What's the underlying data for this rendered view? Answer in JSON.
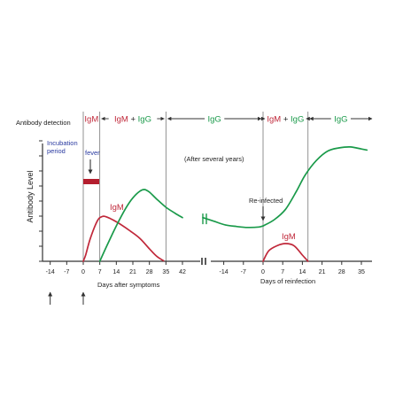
{
  "chart_data": {
    "type": "line",
    "antibody_detection_label": "Antibody detection",
    "ylabel": "Antibody  Level",
    "x_ticks_primary": [
      "-14",
      "-7",
      "0",
      "7",
      "14",
      "21",
      "28",
      "35",
      "42"
    ],
    "x_ticks_reinfection": [
      "-14",
      "-7",
      "0",
      "7",
      "14",
      "21",
      "28",
      "35"
    ],
    "xlabel_primary": "Days after symptoms",
    "xlabel_reinfection": "Days of reinfection",
    "detection_phases": [
      {
        "parts": [
          {
            "text": "IgM",
            "color": "#c0283a"
          }
        ]
      },
      {
        "parts": [
          {
            "text": "IgM",
            "color": "#c0283a"
          },
          {
            "text": " + ",
            "color": "#222222"
          },
          {
            "text": "IgG",
            "color": "#1a9a4a"
          }
        ]
      },
      {
        "parts": [
          {
            "text": "IgG",
            "color": "#1a9a4a"
          }
        ]
      },
      {
        "parts": [
          {
            "text": "IgM",
            "color": "#c0283a"
          },
          {
            "text": " + ",
            "color": "#222222"
          },
          {
            "text": "IgG",
            "color": "#1a9a4a"
          }
        ]
      },
      {
        "parts": [
          {
            "text": "IgG",
            "color": "#1a9a4a"
          }
        ]
      }
    ],
    "annotations": {
      "incubation": [
        "Incubation",
        "period"
      ],
      "fever": "fever",
      "after_years": "(After several years)",
      "reinfected": "Re-infected",
      "igm_primary": "IgM",
      "igm_reinfection": "IgM"
    },
    "colors": {
      "igm": "#c0283a",
      "igg": "#1a9a4a",
      "incubation": "#2a3aa0",
      "fever_bar": "#b41e2e",
      "axis": "#333333"
    },
    "series": [
      {
        "key": "igm_primary",
        "segment": "primary",
        "color": "#c0283a",
        "points": [
          [
            0,
            0
          ],
          [
            1,
            0.6
          ],
          [
            3,
            2.2
          ],
          [
            6,
            3.9
          ],
          [
            8,
            4.3
          ],
          [
            10,
            4.25
          ],
          [
            14,
            3.8
          ],
          [
            20,
            2.9
          ],
          [
            24,
            2.2
          ],
          [
            28,
            1.2
          ],
          [
            31,
            0.5
          ],
          [
            34,
            0.05
          ]
        ]
      },
      {
        "key": "igg_primary",
        "segment": "primary",
        "color": "#1a9a4a",
        "points": [
          [
            7,
            0
          ],
          [
            10,
            1.5
          ],
          [
            14,
            3.4
          ],
          [
            18,
            5.1
          ],
          [
            21,
            6.1
          ],
          [
            24,
            6.75
          ],
          [
            26,
            6.9
          ],
          [
            28,
            6.65
          ],
          [
            31,
            6.0
          ],
          [
            35,
            5.2
          ],
          [
            39,
            4.6
          ],
          [
            42,
            4.2
          ]
        ]
      },
      {
        "key": "igg_bridge",
        "segment": "break",
        "color": "#1a9a4a",
        "points": [
          [
            42,
            4.2
          ],
          [
            46,
            3.85
          ],
          [
            50,
            3.5
          ],
          [
            54,
            3.35
          ],
          [
            58,
            3.25
          ],
          [
            62,
            3.3
          ],
          [
            63.5,
            3.4
          ]
        ]
      },
      {
        "key": "igm_reinfection",
        "segment": "reinfection",
        "color": "#c0283a",
        "points": [
          [
            0,
            0
          ],
          [
            2,
            1.0
          ],
          [
            5,
            1.5
          ],
          [
            8,
            1.7
          ],
          [
            11,
            1.5
          ],
          [
            14,
            0.6
          ],
          [
            16,
            0
          ]
        ]
      },
      {
        "key": "igg_reinfection",
        "segment": "reinfection",
        "color": "#1a9a4a",
        "points": [
          [
            0,
            3.4
          ],
          [
            4,
            4.0
          ],
          [
            8,
            5.0
          ],
          [
            12,
            6.8
          ],
          [
            15,
            8.3
          ],
          [
            19,
            9.7
          ],
          [
            23,
            10.6
          ],
          [
            27,
            10.9
          ],
          [
            31,
            11.0
          ],
          [
            35,
            10.8
          ],
          [
            37,
            10.7
          ]
        ]
      }
    ],
    "phase_boundaries_primary": [
      0,
      7,
      35
    ],
    "phase_boundaries_reinfection": [
      0,
      16
    ],
    "ylim": [
      0,
      11.5
    ]
  }
}
